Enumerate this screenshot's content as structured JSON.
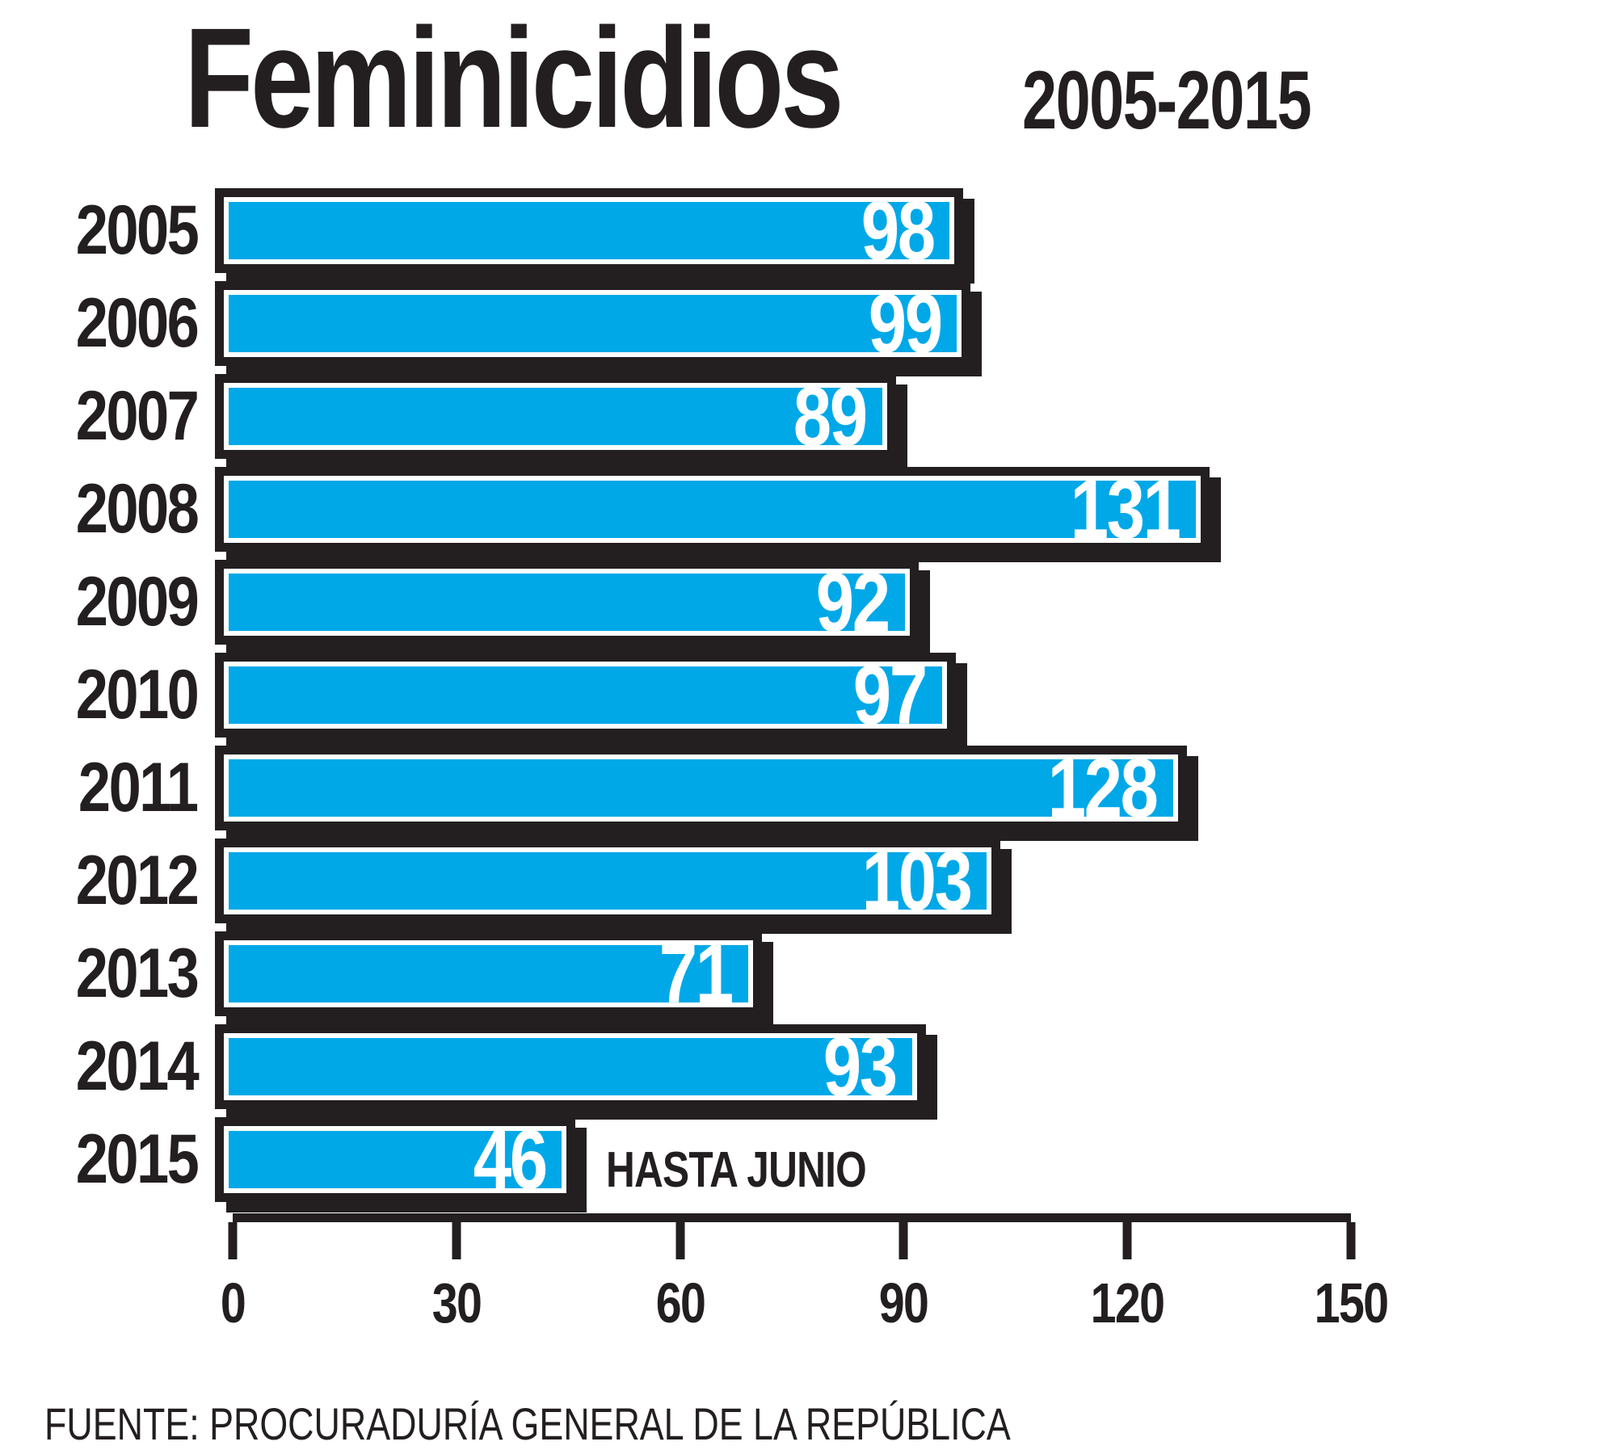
{
  "header": {
    "title": "Feminicidios",
    "subtitle": "2005-2015"
  },
  "footer": {
    "source": "FUENTE: PROCURADURÍA GENERAL DE LA REPÚBLICA"
  },
  "colors": {
    "bar": "#00A8E8",
    "ink": "#231F20",
    "value_label": "#FFFFFF",
    "background": "#FFFFFF"
  },
  "chart_data": {
    "type": "bar",
    "orientation": "horizontal",
    "title": "Feminicidios",
    "subtitle": "2005-2015",
    "categories": [
      "2005",
      "2006",
      "2007",
      "2008",
      "2009",
      "2010",
      "2011",
      "2012",
      "2013",
      "2014",
      "2015"
    ],
    "values": [
      98,
      99,
      89,
      131,
      92,
      97,
      128,
      103,
      71,
      93,
      46
    ],
    "xlim": [
      0,
      150
    ],
    "x_ticks": [
      0,
      30,
      60,
      90,
      120,
      150
    ],
    "annotation": {
      "category": "2015",
      "label": "HASTA JUNIO"
    },
    "value_labels_inside_bar": true,
    "grid": false,
    "legend": false,
    "source": "FUENTE: PROCURADURÍA GENERAL DE LA REPÚBLICA"
  }
}
